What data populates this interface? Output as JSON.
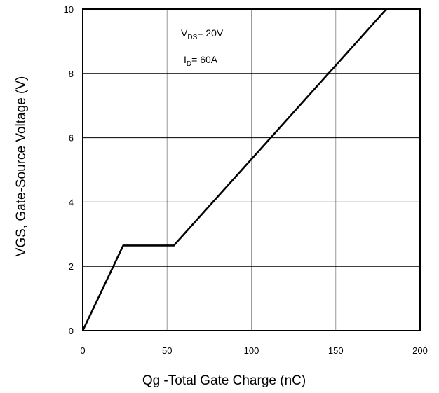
{
  "chart_data": {
    "type": "line",
    "xlabel": "Qg -Total Gate Charge (nC)",
    "ylabel": "VGS, Gate-Source Voltage (V)",
    "xlim": [
      0,
      200
    ],
    "ylim": [
      0,
      10
    ],
    "x_ticks": [
      "0",
      "50",
      "100",
      "150",
      "200"
    ],
    "y_ticks": [
      "0",
      "2",
      "4",
      "6",
      "8",
      "10"
    ],
    "grid": true,
    "annotations": [
      {
        "main": "V",
        "sub": "DS",
        "rest": "= 20V"
      },
      {
        "main": "I",
        "sub": "D",
        "rest": "= 60A"
      }
    ],
    "series": [
      {
        "x": [
          0,
          24,
          54,
          180
        ],
        "y": [
          0,
          2.65,
          2.65,
          10
        ]
      }
    ]
  }
}
